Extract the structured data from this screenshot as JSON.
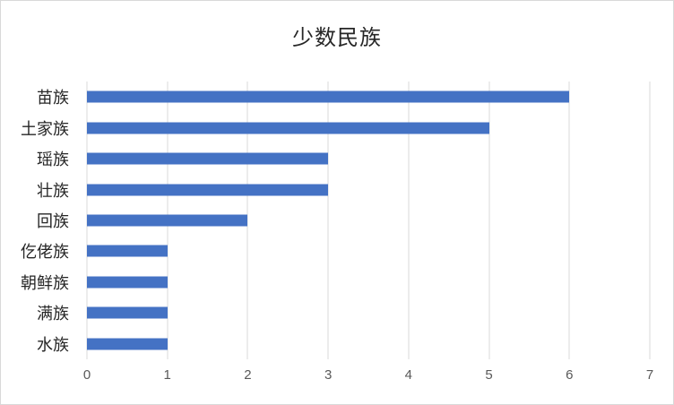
{
  "chart_data": {
    "type": "bar",
    "orientation": "horizontal",
    "title": "少数民族",
    "categories": [
      "苗族",
      "土家族",
      "瑶族",
      "壮族",
      "回族",
      "仡佬族",
      "朝鲜族",
      "满族",
      "水族"
    ],
    "values": [
      6,
      5,
      3,
      3,
      2,
      1,
      1,
      1,
      1
    ],
    "xlabel": "",
    "ylabel": "",
    "xlim": [
      0,
      7
    ],
    "x_ticks": [
      0,
      1,
      2,
      3,
      4,
      5,
      6,
      7
    ],
    "grid": "vertical-gridlines-on",
    "legend": "none",
    "colors": {
      "bar": "#4472C4",
      "gridline": "#D9D9D9",
      "tick_label": "#595959",
      "category_label": "#262626",
      "title": "#262626",
      "background": "#FFFFFF",
      "frame_border": "#D9D9D9"
    }
  }
}
